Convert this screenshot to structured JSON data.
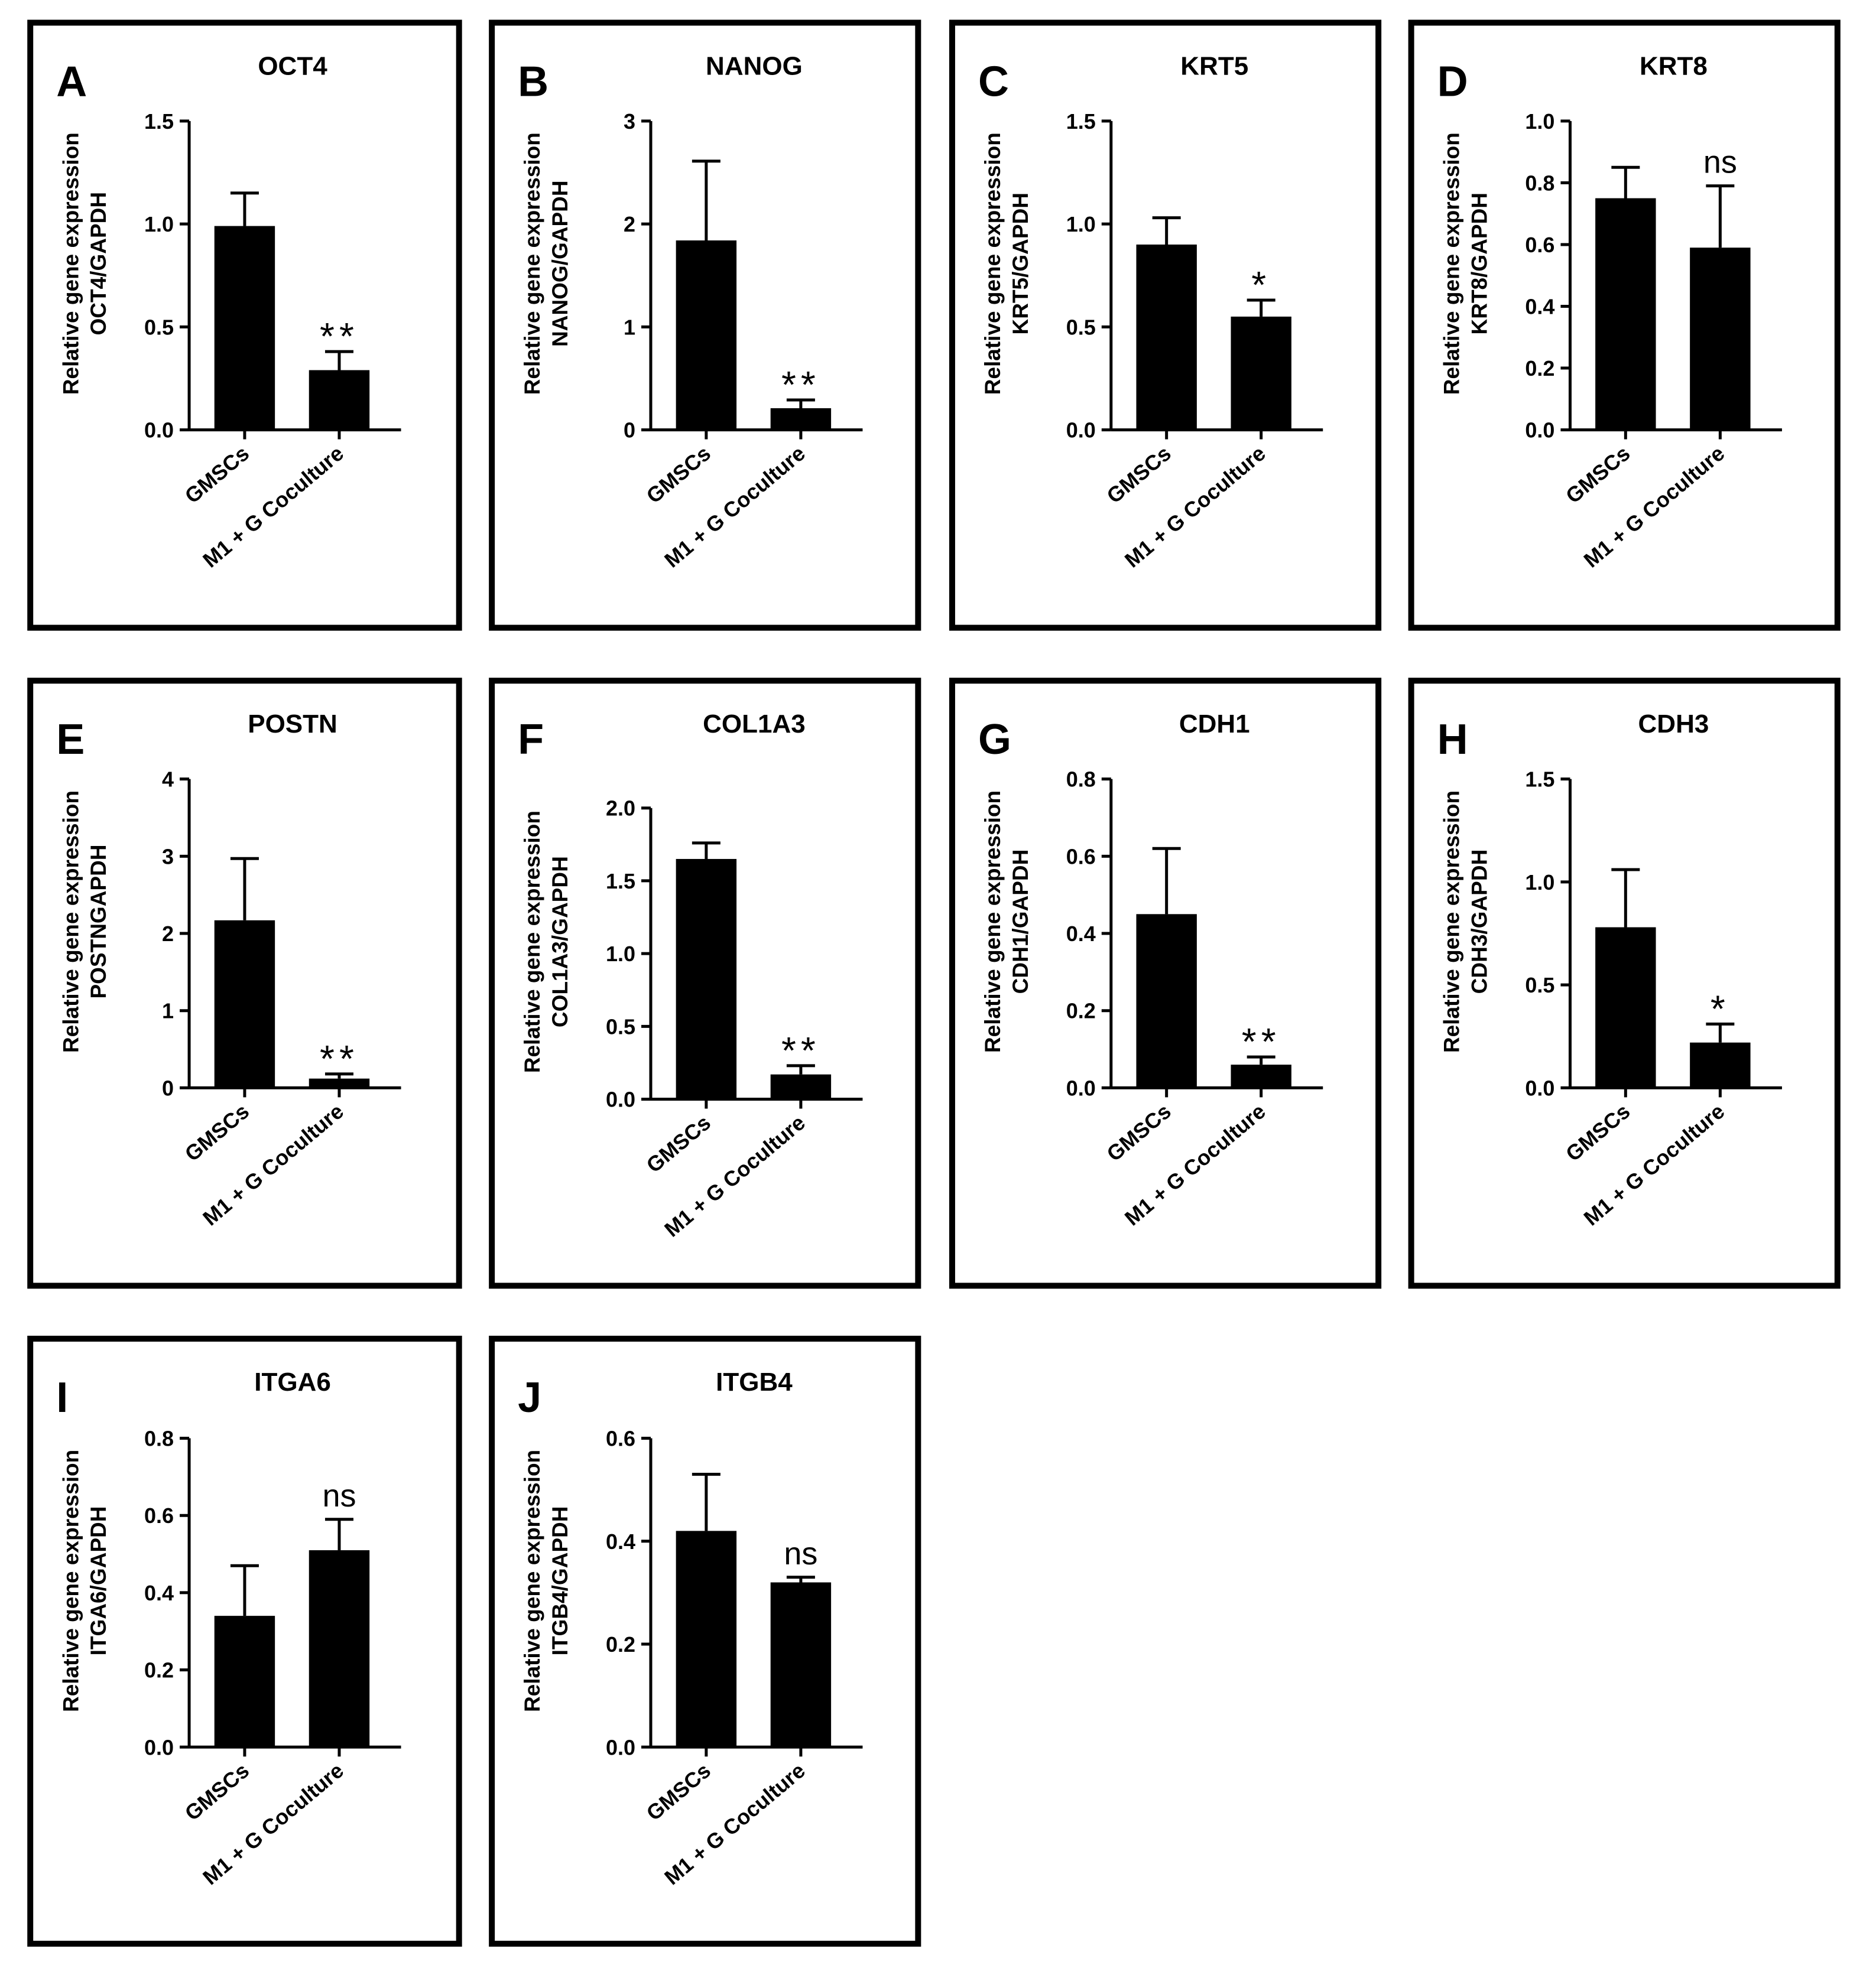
{
  "figure": {
    "categories": [
      "GMSCs",
      "M1 + G Coculture"
    ]
  },
  "chart_data": [
    {
      "type": "bar",
      "letter": "A",
      "title": "OCT4",
      "ylabel_1": "Relative gene expression",
      "ylabel_2": "OCT4/GAPDH",
      "categories": [
        "GMSCs",
        "M1 + G Coculture"
      ],
      "values": [
        0.99,
        0.29
      ],
      "errors": [
        0.16,
        0.09
      ],
      "ylim": [
        0,
        1.5
      ],
      "ticks": [
        "0.0",
        "0.5",
        "1.0",
        "1.5"
      ],
      "annotation": "**"
    },
    {
      "type": "bar",
      "letter": "B",
      "title": "NANOG",
      "ylabel_1": "Relative gene expression",
      "ylabel_2": "NANOG/GAPDH",
      "categories": [
        "GMSCs",
        "M1 + G Coculture"
      ],
      "values": [
        1.84,
        0.21
      ],
      "errors": [
        0.77,
        0.08
      ],
      "ylim": [
        0,
        3
      ],
      "ticks": [
        "0",
        "1",
        "2",
        "3"
      ],
      "annotation": "**"
    },
    {
      "type": "bar",
      "letter": "C",
      "title": "KRT5",
      "ylabel_1": "Relative gene expression",
      "ylabel_2": "KRT5/GAPDH",
      "categories": [
        "GMSCs",
        "M1 + G Coculture"
      ],
      "values": [
        0.9,
        0.55
      ],
      "errors": [
        0.13,
        0.08
      ],
      "ylim": [
        0,
        1.5
      ],
      "ticks": [
        "0.0",
        "0.5",
        "1.0",
        "1.5"
      ],
      "annotation": "*"
    },
    {
      "type": "bar",
      "letter": "D",
      "title": "KRT8",
      "ylabel_1": "Relative gene expression",
      "ylabel_2": "KRT8/GAPDH",
      "categories": [
        "GMSCs",
        "M1 + G Coculture"
      ],
      "values": [
        0.75,
        0.59
      ],
      "errors": [
        0.1,
        0.2
      ],
      "ylim": [
        0,
        1.0
      ],
      "ticks": [
        "0.0",
        "0.2",
        "0.4",
        "0.6",
        "0.8",
        "1.0"
      ],
      "annotation": "ns"
    },
    {
      "type": "bar",
      "letter": "E",
      "title": "POSTN",
      "ylabel_1": "Relative gene expression",
      "ylabel_2": "POSTNGAPDH",
      "categories": [
        "GMSCs",
        "M1 + G Coculture"
      ],
      "values": [
        2.17,
        0.12
      ],
      "errors": [
        0.8,
        0.06
      ],
      "ylim": [
        0,
        4
      ],
      "ticks": [
        "0",
        "1",
        "2",
        "3",
        "4"
      ],
      "annotation": "**"
    },
    {
      "type": "bar",
      "letter": "F",
      "title": "COL1A3",
      "ylabel_1": "Relative gene expression",
      "ylabel_2": "COL1A3/GAPDH",
      "categories": [
        "GMSCs",
        "M1 + G Coculture"
      ],
      "values": [
        1.65,
        0.17
      ],
      "errors": [
        0.11,
        0.06
      ],
      "ylim": [
        0,
        2.0
      ],
      "ticks": [
        "0.0",
        "0.5",
        "1.0",
        "1.5",
        "2.0"
      ],
      "annotation": "**"
    },
    {
      "type": "bar",
      "letter": "G",
      "title": "CDH1",
      "ylabel_1": "Relative gene expression",
      "ylabel_2": "CDH1/GAPDH",
      "categories": [
        "GMSCs",
        "M1 + G Coculture"
      ],
      "values": [
        0.45,
        0.06
      ],
      "errors": [
        0.17,
        0.02
      ],
      "ylim": [
        0,
        0.8
      ],
      "ticks": [
        "0.0",
        "0.2",
        "0.4",
        "0.6",
        "0.8"
      ],
      "annotation": "**"
    },
    {
      "type": "bar",
      "letter": "H",
      "title": "CDH3",
      "ylabel_1": "Relative gene expression",
      "ylabel_2": "CDH3/GAPDH",
      "categories": [
        "GMSCs",
        "M1 + G Coculture"
      ],
      "values": [
        0.78,
        0.22
      ],
      "errors": [
        0.28,
        0.09
      ],
      "ylim": [
        0,
        1.5
      ],
      "ticks": [
        "0.0",
        "0.5",
        "1.0",
        "1.5"
      ],
      "annotation": "*"
    },
    {
      "type": "bar",
      "letter": "I",
      "title": "ITGA6",
      "ylabel_1": "Relative gene expression",
      "ylabel_2": "ITGA6/GAPDH",
      "categories": [
        "GMSCs",
        "M1 + G Coculture"
      ],
      "values": [
        0.34,
        0.51
      ],
      "errors": [
        0.13,
        0.08
      ],
      "ylim": [
        0,
        0.8
      ],
      "ticks": [
        "0.0",
        "0.2",
        "0.4",
        "0.6",
        "0.8"
      ],
      "annotation": "ns"
    },
    {
      "type": "bar",
      "letter": "J",
      "title": "ITGB4",
      "ylabel_1": "Relative gene expression",
      "ylabel_2": "ITGB4/GAPDH",
      "categories": [
        "GMSCs",
        "M1 + G Coculture"
      ],
      "values": [
        0.42,
        0.32
      ],
      "errors": [
        0.11,
        0.01
      ],
      "ylim": [
        0,
        0.6
      ],
      "ticks": [
        "0.0",
        "0.2",
        "0.4",
        "0.6"
      ],
      "annotation": "ns"
    }
  ]
}
